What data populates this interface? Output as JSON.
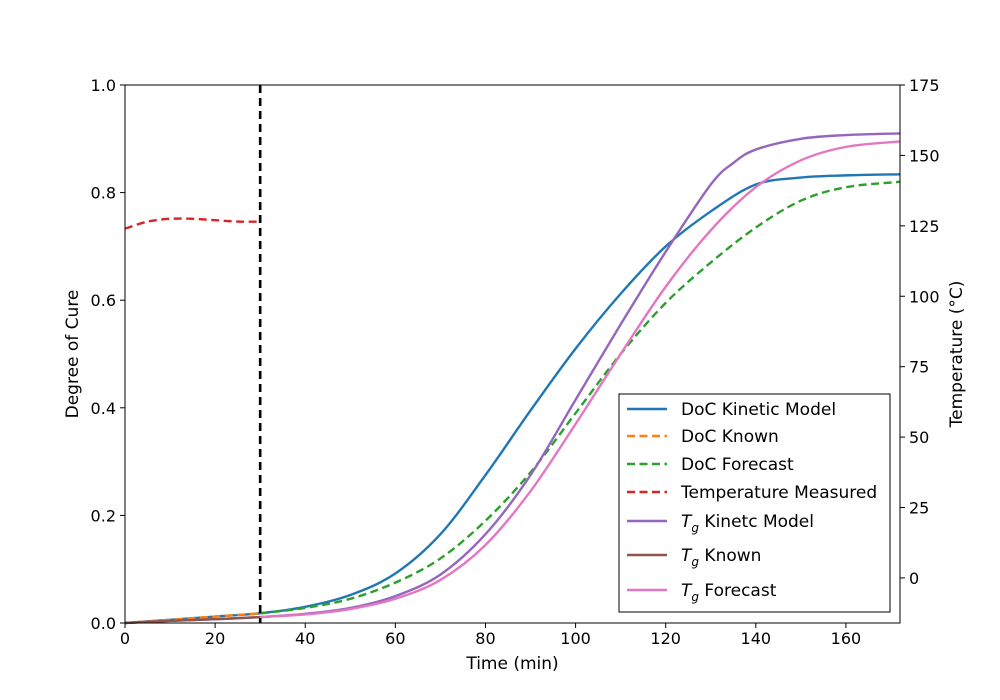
{
  "chart_data": {
    "type": "line",
    "xlabel": "Time (min)",
    "ylabel": "Degree of Cure",
    "y2label": "Temperature (°C)",
    "xlim": [
      0,
      172
    ],
    "ylim": [
      0,
      1.0
    ],
    "y2lim": [
      -16,
      175
    ],
    "xticks": [
      0,
      20,
      40,
      60,
      80,
      100,
      120,
      140,
      160
    ],
    "yticks": [
      0.0,
      0.2,
      0.4,
      0.6,
      0.8,
      1.0
    ],
    "y2ticks": [
      0,
      25,
      50,
      75,
      100,
      125,
      150,
      175
    ],
    "vline": {
      "x": 30,
      "color": "#000000",
      "style": "dashed"
    },
    "grid": false,
    "legend_position": "lower-right",
    "series": [
      {
        "name": "DoC Kinetic Model",
        "color": "#1f77b4",
        "style": "solid",
        "axis": "left",
        "x": [
          0,
          10,
          20,
          30,
          40,
          50,
          60,
          70,
          80,
          90,
          100,
          110,
          120,
          130,
          140,
          150,
          160,
          172
        ],
        "y": [
          0.0,
          0.006,
          0.012,
          0.018,
          0.03,
          0.052,
          0.092,
          0.165,
          0.275,
          0.395,
          0.51,
          0.612,
          0.7,
          0.765,
          0.815,
          0.828,
          0.832,
          0.834
        ]
      },
      {
        "name": "DoC Known",
        "color": "#ff7f0e",
        "style": "dashed",
        "axis": "left",
        "x": [
          0,
          10,
          20,
          30
        ],
        "y": [
          0.0,
          0.006,
          0.012,
          0.018
        ]
      },
      {
        "name": "DoC Forecast",
        "color": "#2ca02c",
        "style": "dashed",
        "axis": "left",
        "x": [
          30,
          40,
          50,
          60,
          70,
          80,
          90,
          100,
          110,
          120,
          130,
          140,
          150,
          160,
          172
        ],
        "y": [
          0.018,
          0.028,
          0.045,
          0.075,
          0.12,
          0.19,
          0.28,
          0.39,
          0.5,
          0.595,
          0.67,
          0.735,
          0.785,
          0.81,
          0.82
        ]
      },
      {
        "name": "Temperature Measured",
        "color": "#d62728",
        "style": "dashed",
        "axis": "right",
        "x": [
          0,
          5,
          10,
          15,
          20,
          25,
          30
        ],
        "y": [
          124,
          126.5,
          127.5,
          127.5,
          127,
          126.5,
          126.5
        ]
      },
      {
        "name": "$T_g$ Kinetc Model",
        "color": "#9467bd",
        "style": "solid",
        "axis": "left",
        "x": [
          0,
          10,
          20,
          30,
          40,
          50,
          60,
          70,
          80,
          90,
          100,
          110,
          120,
          130,
          135,
          140,
          150,
          160,
          172
        ],
        "y": [
          0.0,
          0.004,
          0.007,
          0.011,
          0.017,
          0.028,
          0.05,
          0.09,
          0.165,
          0.275,
          0.415,
          0.555,
          0.69,
          0.815,
          0.855,
          0.88,
          0.9,
          0.907,
          0.91
        ]
      },
      {
        "name": "$T_g$ Known",
        "color": "#8c564b",
        "style": "solid",
        "axis": "left",
        "x": [
          0,
          10,
          20,
          30
        ],
        "y": [
          0.0,
          0.004,
          0.007,
          0.011
        ]
      },
      {
        "name": "$T_g$ Forecast",
        "color": "#e377c2",
        "style": "solid",
        "axis": "left",
        "x": [
          30,
          40,
          50,
          60,
          70,
          80,
          90,
          100,
          110,
          120,
          130,
          140,
          150,
          160,
          172
        ],
        "y": [
          0.011,
          0.016,
          0.026,
          0.045,
          0.08,
          0.145,
          0.245,
          0.37,
          0.5,
          0.625,
          0.73,
          0.81,
          0.86,
          0.885,
          0.895
        ]
      }
    ]
  }
}
